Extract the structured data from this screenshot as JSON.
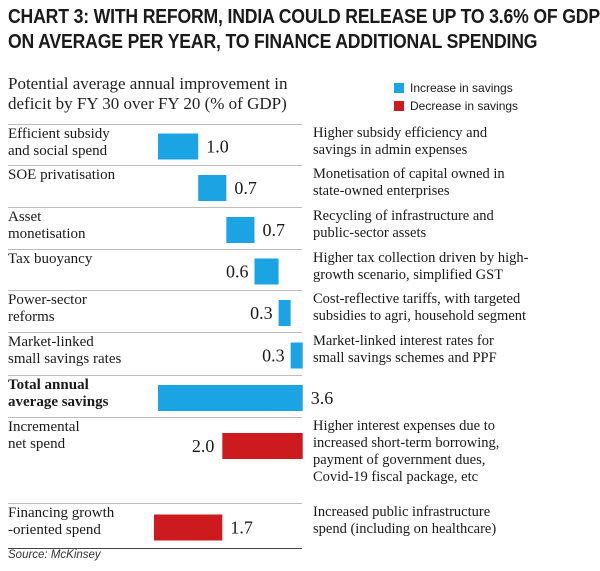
{
  "title_line1": "CHART 3: WITH REFORM, INDIA COULD RELEASE UP TO 3.6% OF GDP",
  "title_line2": "ON AVERAGE PER YEAR, TO FINANCE ADDITIONAL SPENDING",
  "subtitle_line1": "Potential average annual improvement in",
  "subtitle_line2": "deficit by FY 30 over FY 20 (% of GDP)",
  "legend": [
    {
      "label": "Increase in savings",
      "color": "#1ba4e4"
    },
    {
      "label": "Decrease in savings",
      "color": "#cc1a1f"
    }
  ],
  "source": "Source: McKinsey",
  "chart_data": {
    "type": "bar",
    "subtype": "waterfall",
    "categories": [
      {
        "line1": "Efficient subsidy",
        "line2": "and social spend"
      },
      {
        "line1": "SOE privatisation",
        "line2": ""
      },
      {
        "line1": "Asset",
        "line2": "monetisation"
      },
      {
        "line1": "Tax buoyancy",
        "line2": ""
      },
      {
        "line1": "Power-sector",
        "line2": "reforms"
      },
      {
        "line1": "Market-linked",
        "line2": "small savings rates"
      },
      {
        "line1": "Total annual",
        "line2": "average savings"
      },
      {
        "line1": "Incremental",
        "line2": "net spend"
      },
      {
        "line1": "Financing growth",
        "line2": "-oriented spend"
      }
    ],
    "values": [
      1.0,
      0.7,
      0.7,
      0.6,
      0.3,
      0.3,
      3.6,
      -2.0,
      -1.7
    ],
    "value_labels": [
      "1.0",
      "0.7",
      "0.7",
      "0.6",
      "0.3",
      "0.3",
      "3.6",
      "2.0",
      "1.7"
    ],
    "kinds": [
      "increase",
      "increase",
      "increase",
      "increase",
      "increase",
      "increase",
      "total",
      "decrease",
      "decrease"
    ],
    "notes": [
      [
        "Higher subsidy efficiency and",
        "savings in admin expenses"
      ],
      [
        "Monetisation of capital owned in",
        "state-owned enterprises"
      ],
      [
        "Recycling of infrastructure and",
        "public-sector assets"
      ],
      [
        "Higher tax collection driven by high-",
        "growth scenario, simplified GST"
      ],
      [
        "Cost-reflective tariffs, with targeted",
        "subsidies to agri, household segment"
      ],
      [
        "Market-linked interest rates for",
        "small savings schemes and PPF"
      ],
      [],
      [
        "Higher interest expenses due to",
        "increased short-term borrowing,",
        "payment of government dues,",
        "Covid-19 fiscal package, etc"
      ],
      [
        "Increased public infrastructure",
        "spend (including on healthcare)"
      ]
    ]
  }
}
